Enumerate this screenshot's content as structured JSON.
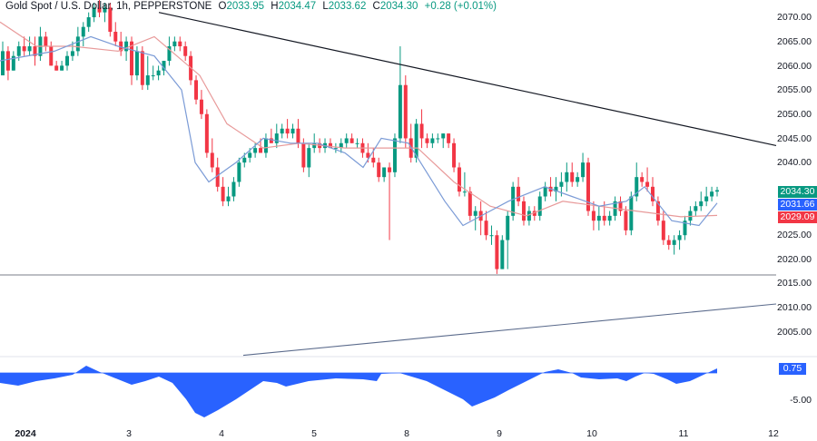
{
  "header": {
    "symbol": "Gold Spot / U.S. Dollar, 1h, PEPPERSTONE",
    "o_label": "O",
    "o_value": "2033.95",
    "h_label": "H",
    "h_value": "2034.47",
    "l_label": "L",
    "l_value": "2033.62",
    "c_label": "C",
    "c_value": "2034.30",
    "change": "+0.28 (+0.01%)"
  },
  "price_axis": [
    "2070.00",
    "2065.00",
    "2060.00",
    "2055.00",
    "2050.00",
    "2045.00",
    "2040.00",
    "2025.00",
    "2020.00",
    "2015.00",
    "2010.00",
    "2005.00"
  ],
  "price_tags": {
    "last": {
      "value": "2034.30",
      "color": "#089981"
    },
    "ma_fast": {
      "value": "2031.66",
      "color": "#2962ff"
    },
    "ma_slow": {
      "value": "2029.09",
      "color": "#f23645"
    }
  },
  "oscillator_axis": {
    "tag": "0.75",
    "tag_color": "#2962ff",
    "tick": "-5.00"
  },
  "time_axis": [
    "2024",
    "3",
    "4",
    "5",
    "8",
    "9",
    "10",
    "11",
    "12"
  ],
  "colors": {
    "up": "#089981",
    "down": "#f23645",
    "ma_fast": "#7b9bd6",
    "ma_slow": "#e89a9a",
    "osc": "#2962ff",
    "trendline": "#131722",
    "support": "#9598a1",
    "lower_trend": "#5b6b8c"
  },
  "chart_data": {
    "type": "candlestick",
    "title": "Gold Spot / U.S. Dollar, 1h, PEPPERSTONE",
    "ylabel": "Price (USD)",
    "ylim": [
      2001,
      2072
    ],
    "x_ticks": [
      "2024",
      "3",
      "4",
      "5",
      "8",
      "9",
      "10",
      "11",
      "12"
    ],
    "last": {
      "open": 2033.95,
      "high": 2034.47,
      "low": 2033.62,
      "close": 2034.3,
      "change": 0.28,
      "change_pct": 0.01
    },
    "ma_fast_last": 2031.66,
    "ma_slow_last": 2029.09,
    "candles": [
      [
        2058,
        2065,
        2058,
        2063
      ],
      [
        2063,
        2064,
        2057,
        2059
      ],
      [
        2059,
        2063,
        2059,
        2062
      ],
      [
        2062,
        2065,
        2061,
        2064
      ],
      [
        2064,
        2066,
        2062,
        2063
      ],
      [
        2063,
        2066,
        2062,
        2064
      ],
      [
        2064,
        2066,
        2060,
        2062
      ],
      [
        2062,
        2068,
        2061,
        2066
      ],
      [
        2066,
        2067,
        2063,
        2064
      ],
      [
        2064,
        2065,
        2060,
        2060
      ],
      [
        2060,
        2061,
        2059,
        2059
      ],
      [
        2059,
        2061,
        2059,
        2060
      ],
      [
        2060,
        2063,
        2059,
        2062
      ],
      [
        2062,
        2065,
        2061,
        2063
      ],
      [
        2063,
        2068,
        2062,
        2066
      ],
      [
        2066,
        2069,
        2064,
        2068
      ],
      [
        2068,
        2071,
        2067,
        2070
      ],
      [
        2070,
        2073,
        2069,
        2072
      ],
      [
        2072,
        2074,
        2070,
        2071
      ],
      [
        2071,
        2073,
        2069,
        2072
      ],
      [
        2072,
        2073,
        2066,
        2067
      ],
      [
        2067,
        2069,
        2064,
        2065
      ],
      [
        2065,
        2067,
        2062,
        2063
      ],
      [
        2063,
        2066,
        2061,
        2065
      ],
      [
        2065,
        2066,
        2056,
        2058
      ],
      [
        2058,
        2064,
        2057,
        2063
      ],
      [
        2063,
        2064,
        2055,
        2056
      ],
      [
        2056,
        2062,
        2055,
        2058
      ],
      [
        2058,
        2060,
        2057,
        2058
      ],
      [
        2058,
        2060,
        2057,
        2059
      ],
      [
        2059,
        2061,
        2058,
        2061
      ],
      [
        2061,
        2066,
        2060,
        2064
      ],
      [
        2064,
        2066,
        2063,
        2065
      ],
      [
        2065,
        2066,
        2063,
        2064
      ],
      [
        2064,
        2065,
        2061,
        2062
      ],
      [
        2062,
        2063,
        2056,
        2057
      ],
      [
        2057,
        2058,
        2052,
        2053
      ],
      [
        2053,
        2055,
        2049,
        2050
      ],
      [
        2050,
        2051,
        2041,
        2042
      ],
      [
        2042,
        2045,
        2038,
        2039
      ],
      [
        2039,
        2041,
        2034,
        2035
      ],
      [
        2035,
        2037,
        2031,
        2032
      ],
      [
        2032,
        2035,
        2031,
        2033
      ],
      [
        2033,
        2037,
        2032,
        2036
      ],
      [
        2036,
        2041,
        2035,
        2040
      ],
      [
        2040,
        2042,
        2039,
        2041
      ],
      [
        2041,
        2043,
        2040,
        2042
      ],
      [
        2042,
        2044,
        2041,
        2043
      ],
      [
        2043,
        2045,
        2042,
        2042
      ],
      [
        2042,
        2046,
        2041,
        2045
      ],
      [
        2045,
        2047,
        2044,
        2044
      ],
      [
        2044,
        2048,
        2043,
        2046
      ],
      [
        2046,
        2048,
        2045,
        2047
      ],
      [
        2047,
        2049,
        2045,
        2046
      ],
      [
        2046,
        2048,
        2045,
        2047
      ],
      [
        2047,
        2049,
        2043,
        2044
      ],
      [
        2044,
        2045,
        2038,
        2039
      ],
      [
        2039,
        2044,
        2037,
        2043
      ],
      [
        2043,
        2046,
        2042,
        2044
      ],
      [
        2044,
        2045,
        2042,
        2043
      ],
      [
        2043,
        2045,
        2042,
        2044
      ],
      [
        2044,
        2045,
        2043,
        2043
      ],
      [
        2043,
        2044,
        2042,
        2043
      ],
      [
        2043,
        2045,
        2042,
        2044
      ],
      [
        2044,
        2046,
        2043,
        2045
      ],
      [
        2045,
        2046,
        2044,
        2044
      ],
      [
        2044,
        2045,
        2043,
        2044
      ],
      [
        2044,
        2045,
        2041,
        2042
      ],
      [
        2042,
        2044,
        2040,
        2041
      ],
      [
        2041,
        2043,
        2039,
        2040
      ],
      [
        2040,
        2041,
        2036,
        2037
      ],
      [
        2037,
        2039,
        2036,
        2039
      ],
      [
        2039,
        2040,
        2024,
        2038
      ],
      [
        2038,
        2046,
        2037,
        2045
      ],
      [
        2045,
        2064,
        2044,
        2056
      ],
      [
        2056,
        2058,
        2043,
        2045
      ],
      [
        2045,
        2048,
        2040,
        2041
      ],
      [
        2041,
        2049,
        2040,
        2048
      ],
      [
        2048,
        2051,
        2043,
        2045
      ],
      [
        2045,
        2046,
        2043,
        2044
      ],
      [
        2044,
        2046,
        2043,
        2045
      ],
      [
        2045,
        2046,
        2044,
        2045
      ],
      [
        2045,
        2046,
        2043,
        2046
      ],
      [
        2046,
        2046,
        2043,
        2044
      ],
      [
        2044,
        2045,
        2038,
        2039
      ],
      [
        2039,
        2040,
        2033,
        2034
      ],
      [
        2034,
        2038,
        2033,
        2034
      ],
      [
        2034,
        2035,
        2028,
        2029
      ],
      [
        2029,
        2031,
        2026,
        2030
      ],
      [
        2030,
        2032,
        2025,
        2028
      ],
      [
        2028,
        2030,
        2024,
        2025
      ],
      [
        2025,
        2027,
        2023,
        2025
      ],
      [
        2025,
        2026,
        2017,
        2018
      ],
      [
        2018,
        2025,
        2018,
        2024
      ],
      [
        2024,
        2030,
        2018,
        2029
      ],
      [
        2029,
        2036,
        2028,
        2035
      ],
      [
        2035,
        2037,
        2031,
        2032
      ],
      [
        2032,
        2033,
        2027,
        2028
      ],
      [
        2028,
        2031,
        2027,
        2030
      ],
      [
        2030,
        2031,
        2028,
        2029
      ],
      [
        2029,
        2034,
        2028,
        2033
      ],
      [
        2033,
        2036,
        2032,
        2035
      ],
      [
        2035,
        2037,
        2033,
        2034
      ],
      [
        2034,
        2037,
        2032,
        2035
      ],
      [
        2035,
        2038,
        2033,
        2036
      ],
      [
        2036,
        2040,
        2034,
        2038
      ],
      [
        2038,
        2040,
        2035,
        2036
      ],
      [
        2036,
        2038,
        2035,
        2037
      ],
      [
        2037,
        2042,
        2036,
        2040
      ],
      [
        2040,
        2041,
        2029,
        2030
      ],
      [
        2030,
        2032,
        2026,
        2028
      ],
      [
        2028,
        2031,
        2026,
        2029
      ],
      [
        2029,
        2032,
        2027,
        2028
      ],
      [
        2028,
        2030,
        2027,
        2029
      ],
      [
        2029,
        2033,
        2028,
        2032
      ],
      [
        2032,
        2033,
        2029,
        2030
      ],
      [
        2030,
        2031,
        2025,
        2026
      ],
      [
        2026,
        2034,
        2025,
        2033
      ],
      [
        2033,
        2040,
        2032,
        2037
      ],
      [
        2037,
        2038,
        2035,
        2036
      ],
      [
        2036,
        2039,
        2034,
        2035
      ],
      [
        2035,
        2037,
        2031,
        2032
      ],
      [
        2032,
        2033,
        2027,
        2028
      ],
      [
        2028,
        2030,
        2023,
        2024
      ],
      [
        2024,
        2025,
        2022,
        2023
      ],
      [
        2023,
        2025,
        2021,
        2024
      ],
      [
        2024,
        2026,
        2022,
        2025
      ],
      [
        2025,
        2029,
        2024,
        2028
      ],
      [
        2028,
        2031,
        2027,
        2030
      ],
      [
        2030,
        2032,
        2029,
        2031
      ],
      [
        2031,
        2034,
        2030,
        2032
      ],
      [
        2032,
        2035,
        2031,
        2033
      ],
      [
        2033,
        2035,
        2032,
        2034
      ],
      [
        2034,
        2035,
        2033,
        2034.3
      ]
    ],
    "ma_fast": [
      [
        0,
        2061
      ],
      [
        60,
        2063
      ],
      [
        100,
        2066
      ],
      [
        130,
        2064
      ],
      [
        170,
        2062
      ],
      [
        200,
        2055
      ],
      [
        215,
        2040
      ],
      [
        230,
        2036
      ],
      [
        260,
        2040
      ],
      [
        290,
        2045
      ],
      [
        320,
        2044
      ],
      [
        350,
        2044
      ],
      [
        380,
        2042
      ],
      [
        400,
        2039
      ],
      [
        420,
        2045
      ],
      [
        450,
        2044
      ],
      [
        470,
        2038
      ],
      [
        490,
        2032
      ],
      [
        510,
        2027
      ],
      [
        530,
        2029
      ],
      [
        560,
        2032
      ],
      [
        600,
        2035
      ],
      [
        630,
        2033
      ],
      [
        660,
        2031
      ],
      [
        690,
        2032
      ],
      [
        710,
        2035
      ],
      [
        740,
        2028
      ],
      [
        770,
        2027
      ],
      [
        790,
        2031.66
      ]
    ],
    "ma_slow": [
      [
        0,
        2069
      ],
      [
        40,
        2064
      ],
      [
        80,
        2064
      ],
      [
        130,
        2063
      ],
      [
        170,
        2066
      ],
      [
        220,
        2058
      ],
      [
        250,
        2048
      ],
      [
        290,
        2043
      ],
      [
        330,
        2044
      ],
      [
        380,
        2043
      ],
      [
        420,
        2043
      ],
      [
        460,
        2043
      ],
      [
        500,
        2036
      ],
      [
        540,
        2031
      ],
      [
        580,
        2029
      ],
      [
        620,
        2032
      ],
      [
        660,
        2031
      ],
      [
        700,
        2030
      ],
      [
        750,
        2028.8
      ],
      [
        790,
        2029.09
      ]
    ],
    "trendline_down": {
      "from": [
        175,
        2071
      ],
      "to": [
        855,
        2043.5
      ]
    },
    "support_line": {
      "price": 2016.8,
      "from_x": 0,
      "to_x": 855
    },
    "trendline_up": {
      "from": [
        268,
        2000.2
      ],
      "to": [
        855,
        2010.8
      ]
    },
    "oscillator": {
      "zero_y": 411,
      "last_value": 0.75,
      "tick_value": -5.0,
      "points": [
        [
          0,
          422
        ],
        [
          20,
          425
        ],
        [
          40,
          420
        ],
        [
          60,
          417
        ],
        [
          80,
          413
        ],
        [
          95,
          403
        ],
        [
          110,
          410
        ],
        [
          130,
          418
        ],
        [
          145,
          424
        ],
        [
          160,
          420
        ],
        [
          175,
          415
        ],
        [
          190,
          422
        ],
        [
          205,
          440
        ],
        [
          215,
          455
        ],
        [
          225,
          460
        ],
        [
          240,
          452
        ],
        [
          260,
          440
        ],
        [
          290,
          420
        ],
        [
          305,
          422
        ],
        [
          315,
          426
        ],
        [
          340,
          420
        ],
        [
          370,
          417
        ],
        [
          400,
          418
        ],
        [
          415,
          420
        ],
        [
          420,
          412
        ],
        [
          440,
          411
        ],
        [
          470,
          420
        ],
        [
          490,
          430
        ],
        [
          510,
          440
        ],
        [
          520,
          448
        ],
        [
          530,
          444
        ],
        [
          545,
          438
        ],
        [
          560,
          430
        ],
        [
          580,
          420
        ],
        [
          600,
          410
        ],
        [
          615,
          407
        ],
        [
          630,
          411
        ],
        [
          640,
          416
        ],
        [
          660,
          418
        ],
        [
          680,
          417
        ],
        [
          690,
          420
        ],
        [
          700,
          415
        ],
        [
          710,
          411
        ],
        [
          720,
          412
        ],
        [
          735,
          418
        ],
        [
          745,
          423
        ],
        [
          760,
          420
        ],
        [
          775,
          413
        ],
        [
          790,
          406
        ]
      ]
    }
  }
}
